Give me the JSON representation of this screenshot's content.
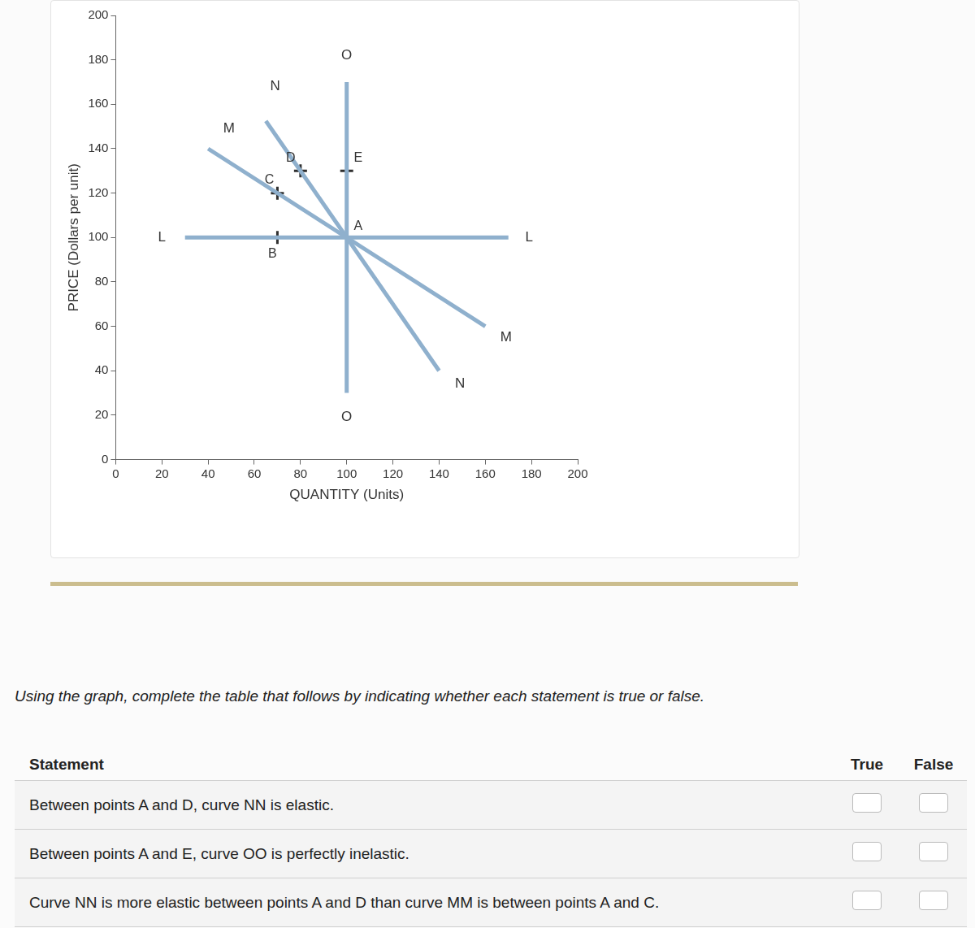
{
  "chart_data": {
    "type": "line",
    "x_label": "QUANTITY (Units)",
    "y_label": "PRICE (Dollars per unit)",
    "xlim": [
      0,
      200
    ],
    "xticks": [
      0,
      20,
      40,
      60,
      80,
      100,
      120,
      140,
      160,
      180,
      200
    ],
    "ylim": [
      0,
      200
    ],
    "yticks": [
      0,
      20,
      40,
      60,
      80,
      100,
      120,
      140,
      160,
      180,
      200
    ],
    "grid": false,
    "legend": "none",
    "series": [
      {
        "name": "L",
        "color": "#8fb0cd",
        "x": [
          30,
          170
        ],
        "values": [
          100,
          100
        ],
        "label_positions": [
          {
            "x": 20,
            "y": 100
          },
          {
            "x": 179,
            "y": 100
          }
        ]
      },
      {
        "name": "M",
        "color": "#8fb0cd",
        "x": [
          40,
          160
        ],
        "values": [
          140,
          60
        ],
        "label_positions": [
          {
            "x": 49,
            "y": 149
          },
          {
            "x": 169,
            "y": 55
          }
        ]
      },
      {
        "name": "N",
        "color": "#8fb0cd",
        "x": [
          65,
          140
        ],
        "values": [
          152.5,
          40
        ],
        "label_positions": [
          {
            "x": 69,
            "y": 168
          },
          {
            "x": 149,
            "y": 34
          }
        ]
      },
      {
        "name": "O",
        "color": "#8fb0cd",
        "x": [
          100,
          100
        ],
        "values": [
          30,
          170
        ],
        "label_positions": [
          {
            "x": 100,
            "y": 182
          },
          {
            "x": 100,
            "y": 19
          }
        ]
      }
    ],
    "points": {
      "marker": "cross",
      "color": "#2f2f2f",
      "labels": [
        "A",
        "B",
        "C",
        "D",
        "E"
      ],
      "x": [
        100,
        70,
        70,
        80,
        100
      ],
      "y": [
        100,
        100,
        120,
        130,
        130
      ]
    }
  },
  "table": {
    "instruction": "Using the graph, complete the table that follows by indicating whether each statement is true or false.",
    "header": [
      "Statement",
      "True",
      "False"
    ],
    "rows": [
      "Between points A and D, curve NN is elastic.",
      "Between points A and E, curve OO is perfectly inelastic.",
      "Curve NN is more elastic between points A and D than curve MM is between points A and C."
    ]
  }
}
